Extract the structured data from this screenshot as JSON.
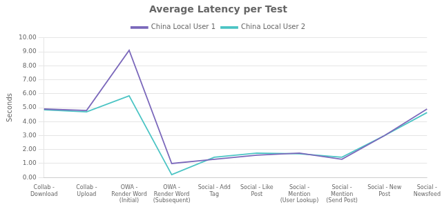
{
  "chart_data": {
    "type": "line",
    "title": "Average Latency per Test",
    "ylabel": "Seconds",
    "categories": [
      "Collab -\nDownload",
      "Collab -\nUpload",
      "OWA -\nRender Word\n(Initial)",
      "OWA -\nRender Word\n(Subsequent)",
      "Social - Add\nTag",
      "Social - Like\nPost",
      "Social -\nMention\n(User Lookup)",
      "Social -\nMention\n(Send Post)",
      "Social - New\nPost",
      "Social -\nNewsfeed"
    ],
    "series": [
      {
        "name": "China Local User 1",
        "color": "#7B68BB",
        "values": [
          4.9,
          4.8,
          9.1,
          1.0,
          1.3,
          1.6,
          1.75,
          1.3,
          3.0,
          4.9
        ]
      },
      {
        "name": "China Local User 2",
        "color": "#4BC4C4",
        "values": [
          4.85,
          4.7,
          5.85,
          0.2,
          1.45,
          1.75,
          1.7,
          1.45,
          3.0,
          4.65
        ]
      }
    ],
    "ylim": [
      0.0,
      10.0
    ],
    "yticks": [
      {
        "value": 0,
        "label": "0.00"
      },
      {
        "value": 1,
        "label": "1.00"
      },
      {
        "value": 2,
        "label": "2.00"
      },
      {
        "value": 3,
        "label": "3.00"
      },
      {
        "value": 4,
        "label": "4.00"
      },
      {
        "value": 5,
        "label": "5.00"
      },
      {
        "value": 6,
        "label": "6.00"
      },
      {
        "value": 7,
        "label": "7.00"
      },
      {
        "value": 8,
        "label": "8.00"
      },
      {
        "value": 9,
        "label": "9.00"
      },
      {
        "value": 10,
        "label": "10.00"
      }
    ],
    "grid": "y",
    "legend": "top"
  }
}
